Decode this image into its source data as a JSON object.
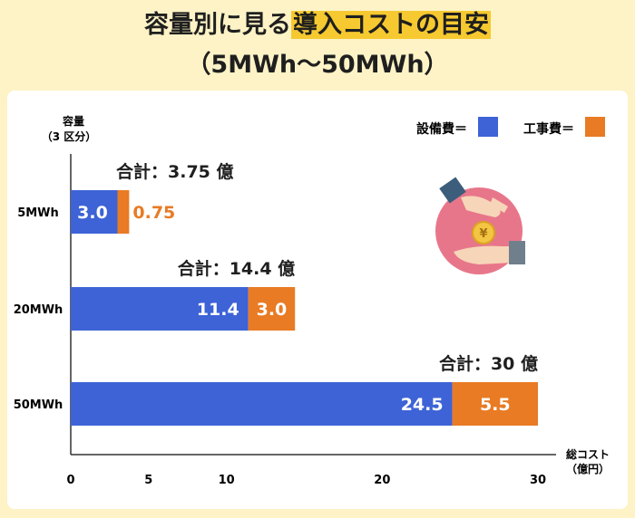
{
  "title": {
    "line1_before": "容量別に見る",
    "line1_highlight": "導入コストの目安",
    "line2": "（5MWh〜50MWh）"
  },
  "colors": {
    "background": "#fdf3c6",
    "card": "#ffffff",
    "highlight": "#f6c930",
    "equipment": "#3d63d6",
    "construction": "#e87b24",
    "illustration_circle": "#e8768a"
  },
  "chart_data": {
    "type": "bar",
    "orientation": "horizontal",
    "stacked": true,
    "categories": [
      "5MWh",
      "20MWh",
      "50MWh"
    ],
    "series": [
      {
        "name": "設備費",
        "values": [
          3.0,
          11.4,
          24.5
        ],
        "labels": [
          "3.0",
          "11.4",
          "24.5"
        ],
        "color": "#3d63d6"
      },
      {
        "name": "工事費",
        "values": [
          0.75,
          3.0,
          5.5
        ],
        "labels": [
          "0.75",
          "3.0",
          "5.5"
        ],
        "color": "#e87b24"
      }
    ],
    "totals": [
      "合計：3.75 億",
      "合計：14.4 億",
      "合計：30 億"
    ],
    "ylabel": [
      "容量",
      "（3 区分）"
    ],
    "xlabel": [
      "総コスト",
      "（億円）"
    ],
    "xlim": [
      0,
      30
    ],
    "xticks": [
      "0",
      "5",
      "10",
      "20",
      "30"
    ],
    "xtick_values": [
      0,
      5,
      10,
      20,
      30
    ],
    "legend": [
      "設備費＝",
      "工事費＝"
    ],
    "legend_position": "top-right",
    "grid": false
  },
  "illustration": {
    "icon": "yen-coin-exchange-icon",
    "coin_symbol": "¥"
  }
}
